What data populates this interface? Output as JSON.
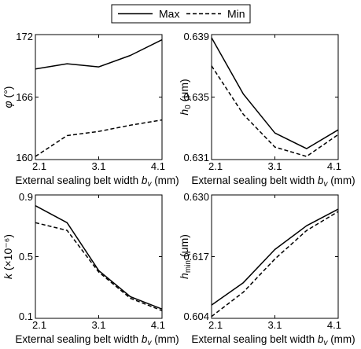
{
  "legend": {
    "entries": [
      {
        "label": "Max",
        "style": "solid"
      },
      {
        "label": "Min",
        "style": "dashed"
      }
    ]
  },
  "chart_data": [
    {
      "type": "line",
      "xlabel_text": "External sealing belt width ",
      "xlabel_sym": "b",
      "xlabel_sub": "v",
      "xlabel_unit": " (mm)",
      "ylabel_main": "φ",
      "ylabel_sub": "",
      "ylabel_unit": " (°)",
      "xlim": [
        2.1,
        4.1
      ],
      "ylim": [
        160,
        172
      ],
      "xticks": [
        "2.1",
        "3.1",
        "4.1"
      ],
      "yticks": [
        "160",
        "166",
        "172"
      ],
      "series": [
        {
          "name": "Max",
          "x": [
            2.1,
            2.6,
            3.1,
            3.6,
            4.1
          ],
          "y": [
            168.7,
            169.2,
            168.9,
            170.0,
            171.5
          ]
        },
        {
          "name": "Min",
          "x": [
            2.1,
            2.6,
            3.1,
            3.6,
            4.1
          ],
          "y": [
            160.3,
            162.3,
            162.7,
            163.3,
            163.8
          ]
        }
      ]
    },
    {
      "type": "line",
      "xlabel_text": "External sealing belt width ",
      "xlabel_sym": "b",
      "xlabel_sub": "v",
      "xlabel_unit": " (mm)",
      "ylabel_main": "h",
      "ylabel_sub": "0",
      "ylabel_unit": " (μm)",
      "xlim": [
        2.1,
        4.1
      ],
      "ylim": [
        0.631,
        0.639
      ],
      "xticks": [
        "2.1",
        "3.1",
        "4.1"
      ],
      "yticks": [
        "0.631",
        "0.635",
        "0.639"
      ],
      "series": [
        {
          "name": "Max",
          "x": [
            2.1,
            2.6,
            3.1,
            3.6,
            4.1
          ],
          "y": [
            0.6388,
            0.6352,
            0.6327,
            0.6317,
            0.6329
          ]
        },
        {
          "name": "Min",
          "x": [
            2.1,
            2.6,
            3.1,
            3.6,
            4.1
          ],
          "y": [
            0.637,
            0.6339,
            0.6318,
            0.6312,
            0.6326
          ]
        }
      ]
    },
    {
      "type": "line",
      "xlabel_text": "External sealing belt width ",
      "xlabel_sym": "b",
      "xlabel_sub": "v",
      "xlabel_unit": " (mm)",
      "ylabel_main": "k",
      "ylabel_sub": "",
      "ylabel_unit": " (×10⁻⁶)",
      "xlim": [
        2.1,
        4.1
      ],
      "ylim": [
        0.1,
        0.9
      ],
      "xticks": [
        "2.1",
        "3.1",
        "4.1"
      ],
      "yticks": [
        "0.1",
        "0.5",
        "0.9"
      ],
      "series": [
        {
          "name": "Max",
          "x": [
            2.1,
            2.6,
            3.1,
            3.6,
            4.1
          ],
          "y": [
            0.83,
            0.72,
            0.41,
            0.24,
            0.16
          ]
        },
        {
          "name": "Min",
          "x": [
            2.1,
            2.6,
            3.1,
            3.6,
            4.1
          ],
          "y": [
            0.72,
            0.67,
            0.4,
            0.23,
            0.15
          ]
        }
      ]
    },
    {
      "type": "line",
      "xlabel_text": "External sealing belt width ",
      "xlabel_sym": "b",
      "xlabel_sub": "v",
      "xlabel_unit": " (mm)",
      "ylabel_main": "h",
      "ylabel_sub": "min",
      "ylabel_unit": " (μm)",
      "xlim": [
        2.1,
        4.1
      ],
      "ylim": [
        0.604,
        0.63
      ],
      "xticks": [
        "2.1",
        "3.1",
        "4.1"
      ],
      "yticks": [
        "0.604",
        "0.617",
        "0.630"
      ],
      "series": [
        {
          "name": "Max",
          "x": [
            2.1,
            2.6,
            3.1,
            3.6,
            4.1
          ],
          "y": [
            0.6068,
            0.6115,
            0.6185,
            0.6235,
            0.627
          ]
        },
        {
          "name": "Min",
          "x": [
            2.1,
            2.6,
            3.1,
            3.6,
            4.1
          ],
          "y": [
            0.6044,
            0.6095,
            0.6165,
            0.6225,
            0.6265
          ]
        }
      ]
    }
  ]
}
